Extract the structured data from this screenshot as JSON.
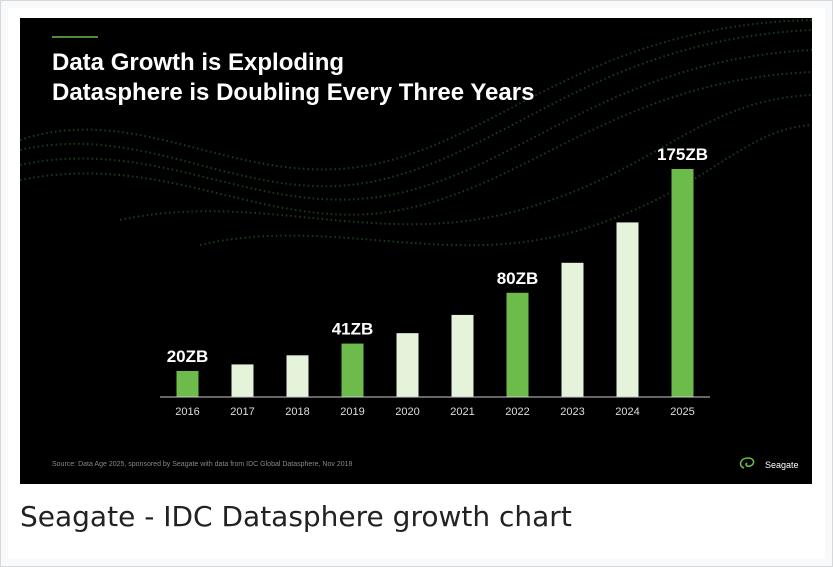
{
  "chart_data": {
    "type": "bar",
    "title": "Data Growth is Exploding",
    "subtitle": "Datasphere is Doubling Every Three Years",
    "categories": [
      "2016",
      "2017",
      "2018",
      "2019",
      "2020",
      "2021",
      "2022",
      "2023",
      "2024",
      "2025"
    ],
    "values": [
      20,
      25,
      32,
      41,
      49,
      63,
      80,
      103,
      134,
      175
    ],
    "value_labels": [
      "20ZB",
      null,
      null,
      "41ZB",
      null,
      null,
      "80ZB",
      null,
      null,
      "175ZB"
    ],
    "colors": [
      "#6cbb4b",
      "#e4f3da",
      "#e4f3da",
      "#6cbb4b",
      "#e4f3da",
      "#e4f3da",
      "#6cbb4b",
      "#e4f3da",
      "#e4f3da",
      "#6cbb4b"
    ],
    "ylim": [
      0,
      175
    ],
    "source": "Source: Data Age 2025, sponsored by Seagate with data from IDC Global Datasphere, Nov 2018",
    "brand": "Seagate"
  },
  "caption": "Seagate - IDC Datasphere growth chart"
}
